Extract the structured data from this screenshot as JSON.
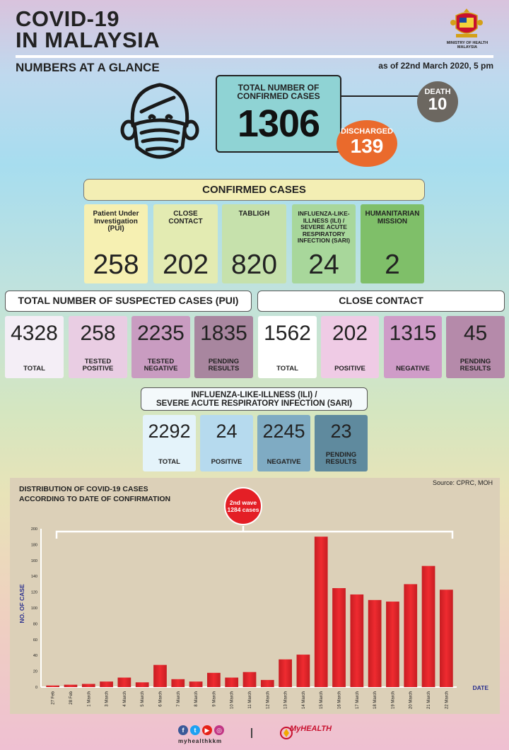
{
  "header": {
    "title_line1": "COVID-19",
    "title_line2": "IN MALAYSIA",
    "subtitle": "NUMBERS AT A GLANCE",
    "as_of": "as of 22nd March 2020, 5 pm",
    "ministry": "MINISTRY OF HEALTH MALAYSIA"
  },
  "summary": {
    "total_label": "TOTAL NUMBER OF CONFIRMED CASES",
    "total_value": "1306",
    "death_label": "DEATH",
    "death_value": "10",
    "discharged_label": "DISCHARGED",
    "discharged_value": "139"
  },
  "confirmed_cases": {
    "title": "CONFIRMED CASES",
    "items": [
      {
        "label": "Patient Under Investigation (PUI)",
        "value": "258"
      },
      {
        "label": "CLOSE CONTACT",
        "value": "202"
      },
      {
        "label": "TABLIGH",
        "value": "820"
      },
      {
        "label": "INFLUENZA-LIKE-ILLNESS (ILI) / SEVERE ACUTE RESPIRATORY INFECTION (SARI)",
        "value": "24"
      },
      {
        "label": "HUMANITARIAN MISSION",
        "value": "2"
      }
    ]
  },
  "pui": {
    "title": "TOTAL NUMBER OF SUSPECTED CASES (PUI)",
    "items": [
      {
        "value": "4328",
        "label": "TOTAL"
      },
      {
        "value": "258",
        "label": "TESTED POSITIVE"
      },
      {
        "value": "2235",
        "label": "TESTED NEGATIVE"
      },
      {
        "value": "1835",
        "label": "PENDING RESULTS"
      }
    ]
  },
  "close_contact": {
    "title": "CLOSE CONTACT",
    "items": [
      {
        "value": "1562",
        "label": "TOTAL"
      },
      {
        "value": "202",
        "label": "POSITIVE"
      },
      {
        "value": "1315",
        "label": "NEGATIVE"
      },
      {
        "value": "45",
        "label": "PENDING RESULTS"
      }
    ]
  },
  "ili": {
    "title_line1": "INFLUENZA-LIKE-ILLNESS (ILI) /",
    "title_line2": "SEVERE ACUTE RESPIRATORY INFECTION (SARI)",
    "items": [
      {
        "value": "2292",
        "label": "TOTAL"
      },
      {
        "value": "24",
        "label": "POSITIVE"
      },
      {
        "value": "2245",
        "label": "NEGATIVE"
      },
      {
        "value": "23",
        "label": "PENDING RESULTS"
      }
    ]
  },
  "colors": {
    "bar": "#e8262b",
    "wave_badge": "#e41f26",
    "total_box": "#8fd3d4",
    "death": "#6c6760",
    "discharged": "#ea6a2c"
  },
  "chart_data": {
    "type": "bar",
    "title_line1": "DISTRIBUTION OF COVID-19 CASES",
    "title_line2": "ACCORDING TO DATE OF CONFIRMATION",
    "source": "Source: CPRC, MOH",
    "xlabel": "DATE",
    "ylabel": "NO. OF CASE",
    "ylim": [
      0,
      200
    ],
    "yticks": [
      0,
      20,
      40,
      60,
      80,
      100,
      120,
      140,
      160,
      180,
      200
    ],
    "categories": [
      "27 Feb",
      "28 Feb",
      "1 March",
      "3 March",
      "4 March",
      "5 March",
      "6 March",
      "7 March",
      "8 March",
      "9 March",
      "10 March",
      "11 March",
      "12 March",
      "13 March",
      "14 March",
      "15 March",
      "16 March",
      "17 March",
      "18 March",
      "19 March",
      "20 March",
      "21 March",
      "22 March"
    ],
    "values": [
      2,
      3,
      4,
      7,
      12,
      6,
      28,
      10,
      7,
      18,
      12,
      19,
      9,
      35,
      41,
      190,
      125,
      117,
      110,
      108,
      130,
      153,
      123
    ],
    "annotation": {
      "line1": "2nd wave",
      "line2": "1284 cases"
    }
  },
  "footer": {
    "social_handle": "myhealthkkm",
    "social_icons": [
      "f",
      "t",
      "▶",
      "◎"
    ],
    "brand": "MyHEALTH",
    "separator": "|"
  }
}
